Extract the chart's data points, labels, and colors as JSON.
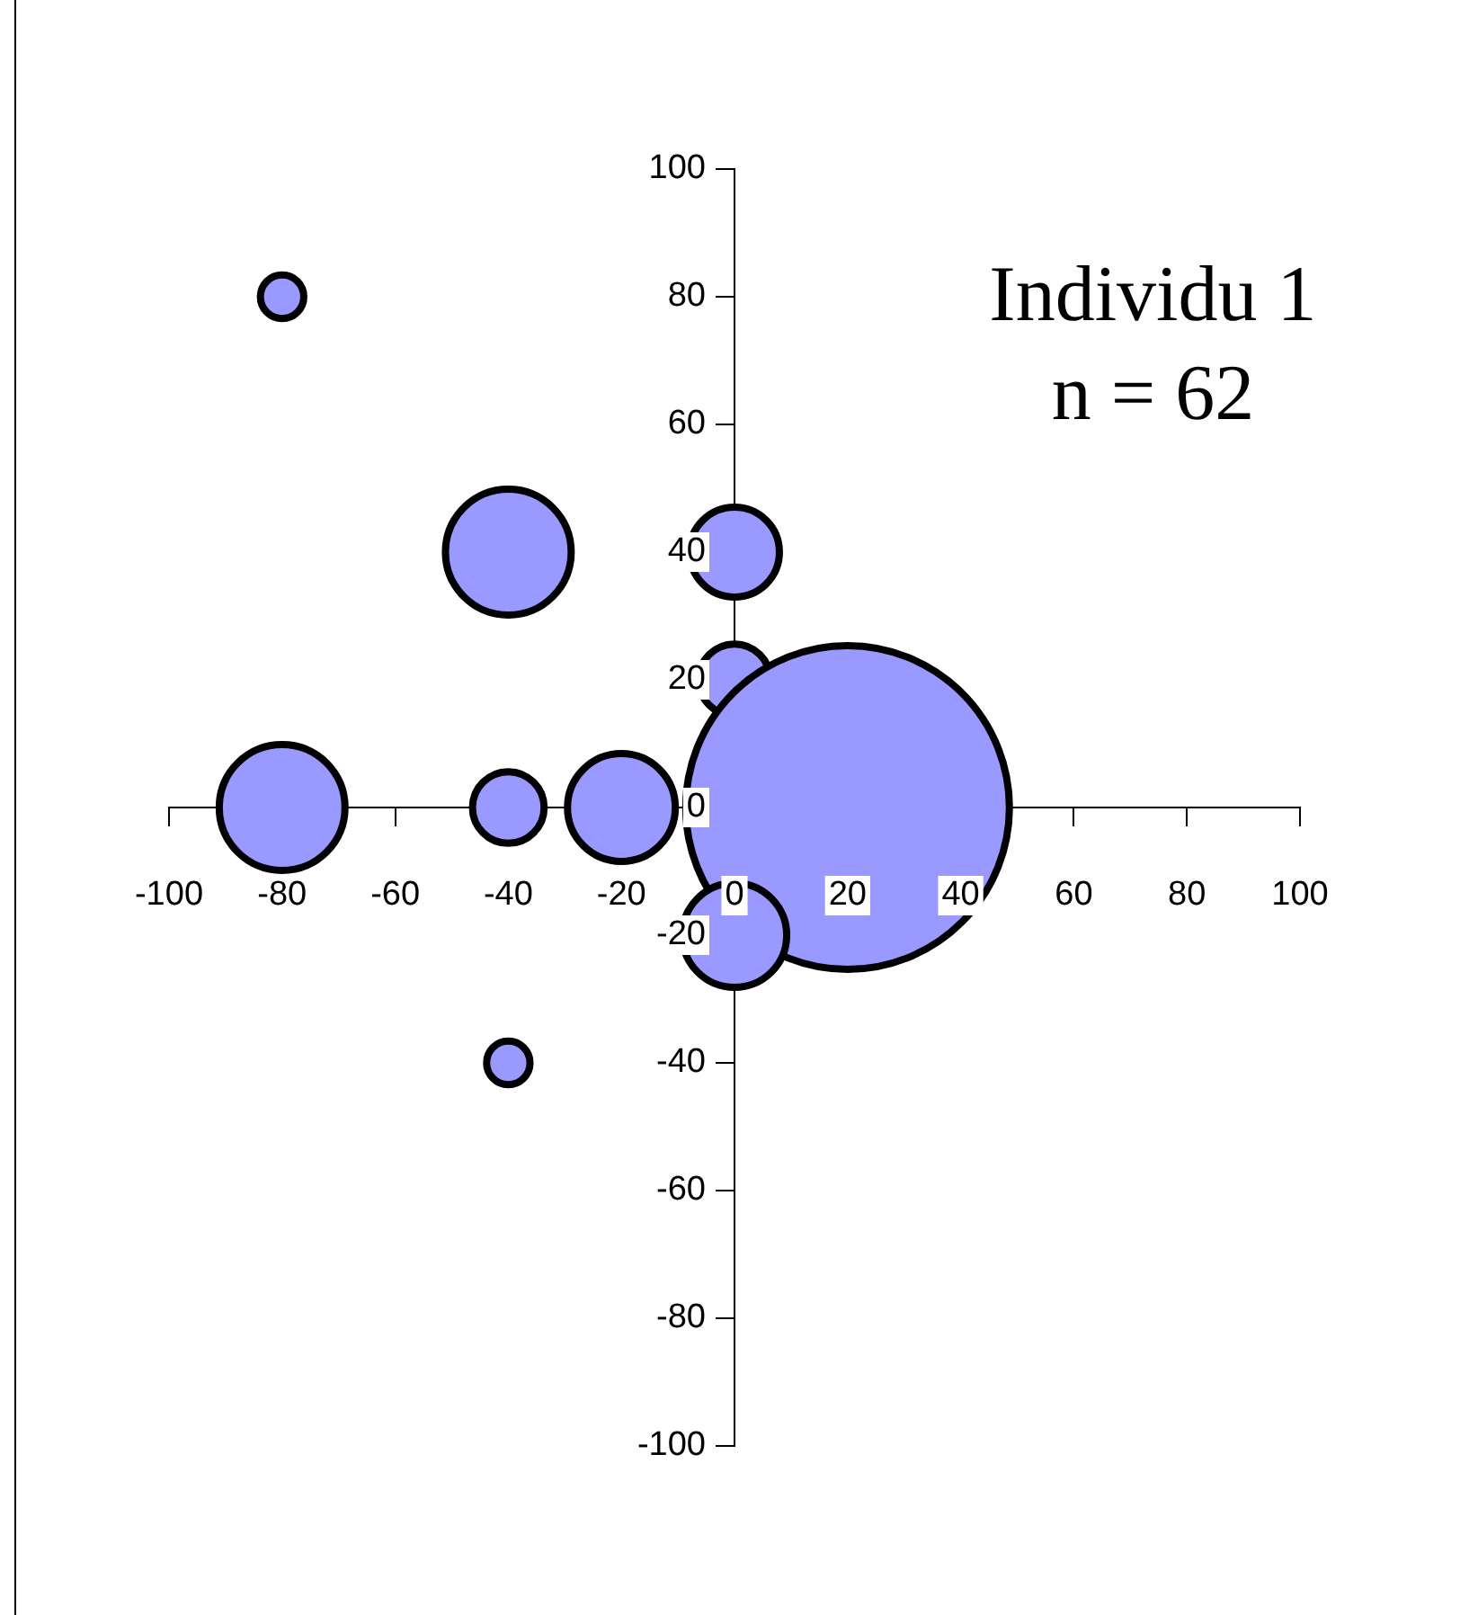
{
  "chart_data": {
    "type": "bubble",
    "title": "Individu 1",
    "subtitle": "n = 62",
    "x": [
      -80,
      -40,
      0,
      0,
      -80,
      -40,
      -20,
      20,
      0,
      -40
    ],
    "values": [
      80,
      40,
      40,
      20,
      0,
      0,
      0,
      0,
      -20,
      -40
    ],
    "sizes": [
      0.018,
      0.151,
      0.077,
      0.049,
      0.151,
      0.049,
      0.111,
      1,
      0.104,
      0.018
    ],
    "color": "#9999ff",
    "xlim": [
      -100,
      100
    ],
    "xticks": [
      -100,
      -80,
      -60,
      -40,
      -20,
      0,
      20,
      40,
      60,
      80,
      100
    ],
    "ylim": [
      -100,
      100
    ],
    "yticks": [
      -100,
      -80,
      -60,
      -40,
      -20,
      0,
      20,
      40,
      60,
      80,
      100
    ],
    "grid": false,
    "legend": false
  }
}
